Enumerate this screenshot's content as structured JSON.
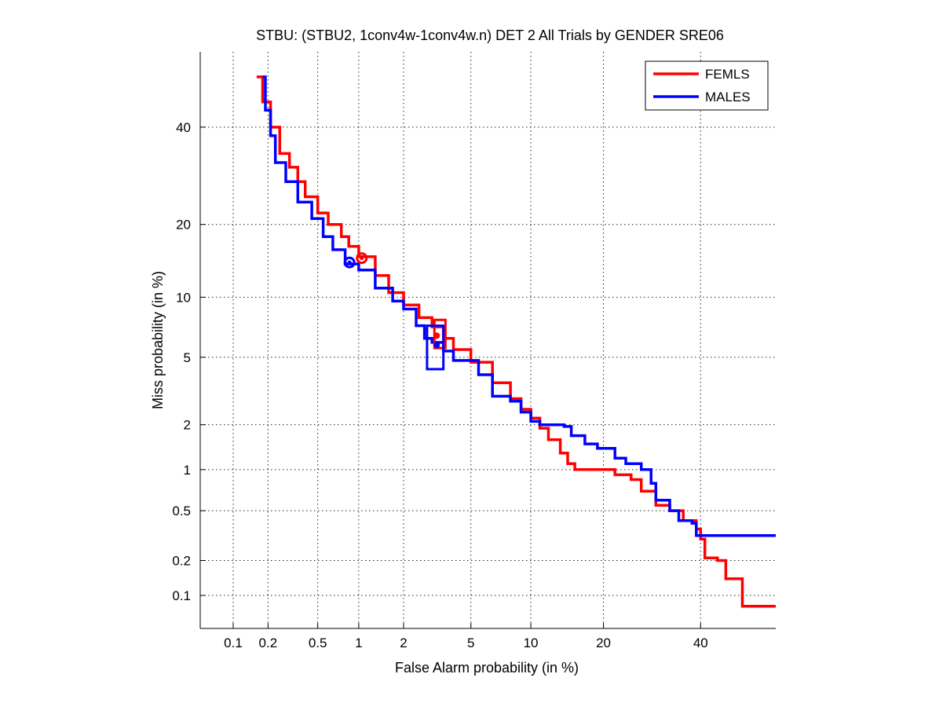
{
  "chart_data": {
    "type": "line",
    "title": "STBU: (STBU2, 1conv4w-1conv4w.n) DET 2 All Trials by GENDER SRE06",
    "xlabel": "False Alarm probability (in %)",
    "ylabel": "Miss probability (in %)",
    "scale": "normal-deviate (probit)",
    "xlim": [
      0.05,
      58
    ],
    "ylim": [
      0.05,
      58
    ],
    "xticks": [
      0.1,
      0.2,
      0.5,
      1,
      2,
      5,
      10,
      20,
      40
    ],
    "xtick_labels": [
      "0.1",
      "0.2",
      "0.5",
      "1",
      "2",
      "5",
      "10",
      "20",
      "40"
    ],
    "yticks": [
      0.1,
      0.2,
      0.5,
      1,
      2,
      5,
      10,
      20,
      40
    ],
    "ytick_labels": [
      "0.1",
      "0.2",
      "0.5",
      "1",
      "2",
      "5",
      "10",
      "20",
      "40"
    ],
    "grid": true,
    "legend_position": "top-right",
    "series": [
      {
        "name": "FEMLS",
        "color": "#ff0000",
        "points": [
          [
            0.16,
            52
          ],
          [
            0.18,
            46
          ],
          [
            0.21,
            40
          ],
          [
            0.25,
            34
          ],
          [
            0.3,
            31
          ],
          [
            0.35,
            28
          ],
          [
            0.4,
            25
          ],
          [
            0.5,
            22
          ],
          [
            0.6,
            20
          ],
          [
            0.75,
            18
          ],
          [
            0.85,
            16.5
          ],
          [
            1.0,
            15
          ],
          [
            1.3,
            12.5
          ],
          [
            1.6,
            10.5
          ],
          [
            2.0,
            9.2
          ],
          [
            2.5,
            8.0
          ],
          [
            3.0,
            7.2
          ],
          [
            3.5,
            6.3
          ],
          [
            4.0,
            5.5
          ],
          [
            5.0,
            4.7
          ],
          [
            6.5,
            3.6
          ],
          [
            8.0,
            2.9
          ],
          [
            9.0,
            2.5
          ],
          [
            10.0,
            2.2
          ],
          [
            11.0,
            1.9
          ],
          [
            12.0,
            1.6
          ],
          [
            13.5,
            1.3
          ],
          [
            14.5,
            1.1
          ],
          [
            15.5,
            1.0
          ],
          [
            19,
            1.0
          ],
          [
            22,
            0.92
          ],
          [
            25,
            0.85
          ],
          [
            27,
            0.7
          ],
          [
            30,
            0.55
          ],
          [
            33,
            0.5
          ],
          [
            36,
            0.42
          ],
          [
            39,
            0.36
          ],
          [
            40,
            0.3
          ],
          [
            41,
            0.21
          ],
          [
            44,
            0.2
          ],
          [
            46,
            0.14
          ],
          [
            50,
            0.08
          ],
          [
            58,
            0.08
          ]
        ]
      },
      {
        "name": "MALES",
        "color": "#0000ff",
        "points": [
          [
            0.18,
            52
          ],
          [
            0.19,
            44
          ],
          [
            0.21,
            38
          ],
          [
            0.23,
            32
          ],
          [
            0.28,
            28
          ],
          [
            0.35,
            24
          ],
          [
            0.45,
            21
          ],
          [
            0.55,
            18
          ],
          [
            0.65,
            16
          ],
          [
            0.8,
            14
          ],
          [
            1.0,
            13.2
          ],
          [
            1.3,
            11
          ],
          [
            1.7,
            9.6
          ],
          [
            2.0,
            8.8
          ],
          [
            2.4,
            7.3
          ],
          [
            2.7,
            6.3
          ],
          [
            3.0,
            6.0
          ],
          [
            3.5,
            5.4
          ],
          [
            4.0,
            4.8
          ],
          [
            5.5,
            4.0
          ],
          [
            6.5,
            3.0
          ],
          [
            8.0,
            2.8
          ],
          [
            9.0,
            2.4
          ],
          [
            10,
            2.1
          ],
          [
            11,
            2.0
          ],
          [
            14,
            1.95
          ],
          [
            15,
            1.7
          ],
          [
            17,
            1.5
          ],
          [
            19,
            1.4
          ],
          [
            22,
            1.2
          ],
          [
            24,
            1.1
          ],
          [
            27,
            1.0
          ],
          [
            29,
            0.8
          ],
          [
            30,
            0.6
          ],
          [
            33,
            0.5
          ],
          [
            35,
            0.42
          ],
          [
            38,
            0.4
          ],
          [
            39,
            0.32
          ],
          [
            58,
            0.32
          ]
        ]
      }
    ],
    "operating_points": [
      {
        "series": "FEMLS",
        "label": "min DCF point",
        "x": 1.05,
        "y": 14.8
      },
      {
        "series": "MALES",
        "label": "min DCF point",
        "x": 0.86,
        "y": 14.2
      }
    ],
    "confidence_boxes": [
      {
        "series": "FEMLS",
        "x_range": [
          3.1,
          3.6
        ],
        "y_range": [
          5.6,
          7.8
        ],
        "center": [
          3.2,
          6.5
        ]
      },
      {
        "series": "MALES",
        "x_range": [
          2.8,
          3.5
        ],
        "y_range": [
          4.3,
          7.3
        ],
        "center": [
          3.2,
          5.8
        ]
      }
    ]
  }
}
